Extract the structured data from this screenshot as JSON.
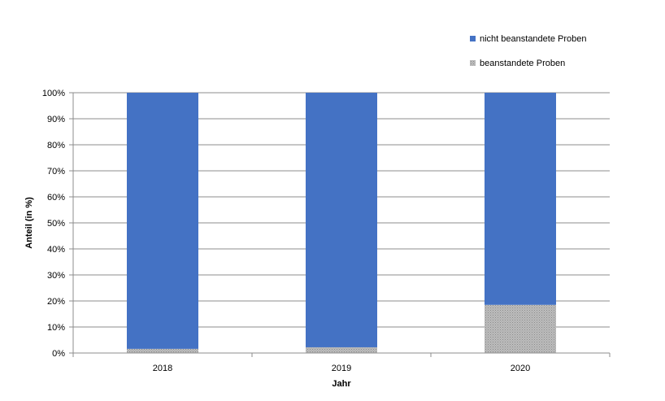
{
  "chart_data": {
    "type": "bar",
    "stacked": true,
    "stack_mode": "percent",
    "categories": [
      "2018",
      "2019",
      "2020"
    ],
    "series": [
      {
        "name": "beanstandete Proben",
        "values": [
          1.6,
          2.2,
          18.5
        ],
        "color": "#a6a6a6",
        "pattern": "dotted"
      },
      {
        "name": "nicht beanstandete Proben",
        "values": [
          98.4,
          97.8,
          81.5
        ],
        "color": "#4472c4"
      }
    ],
    "xlabel": "Jahr",
    "ylabel": "Anteil (in %)",
    "ylim": [
      0,
      100
    ],
    "yticks": [
      "0%",
      "10%",
      "20%",
      "30%",
      "40%",
      "50%",
      "60%",
      "70%",
      "80%",
      "90%",
      "100%"
    ],
    "grid": true,
    "legend": {
      "position": "top-right",
      "order": [
        "nicht beanstandete Proben",
        "beanstandete Proben"
      ]
    }
  }
}
